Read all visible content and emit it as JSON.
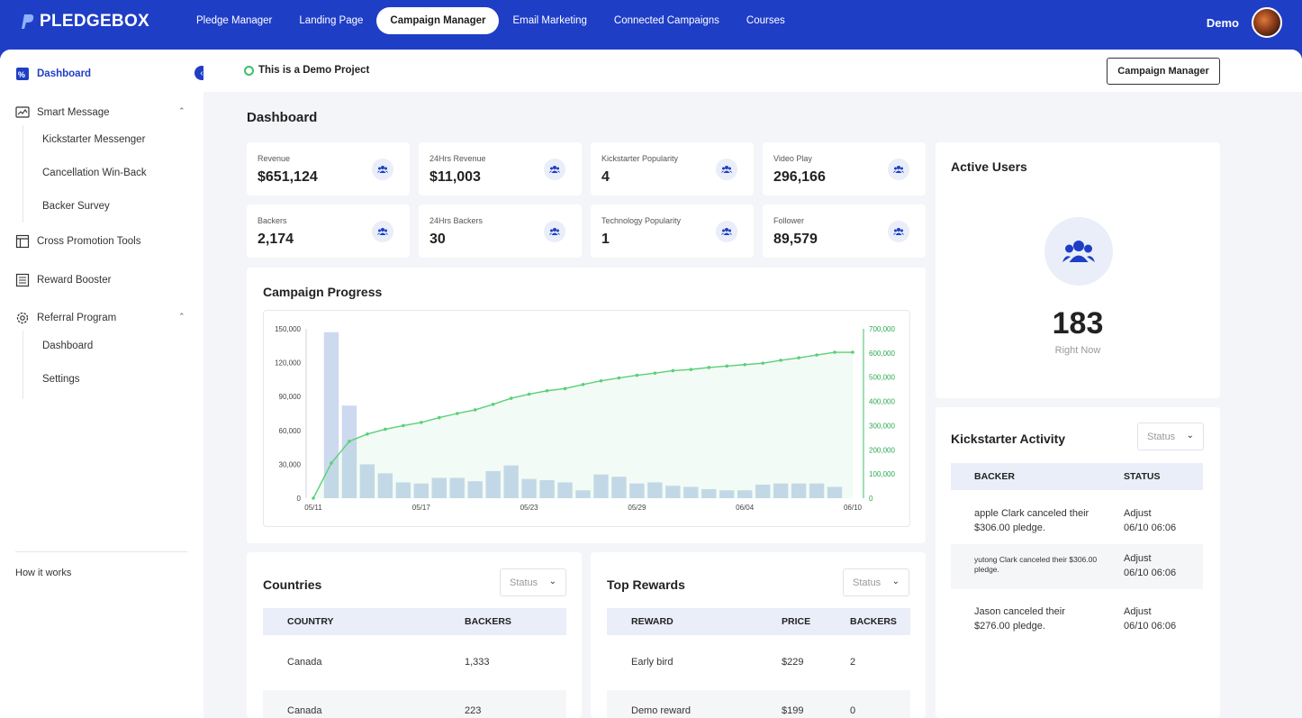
{
  "brand": {
    "name": "PLEDGEBOX"
  },
  "nav": {
    "items": [
      "Pledge Manager",
      "Landing Page",
      "Campaign Manager",
      "Email Marketing",
      "Connected Campaigns",
      "Courses"
    ],
    "active": "Campaign Manager"
  },
  "user": {
    "name": "Demo"
  },
  "sidebar": {
    "dashboard": "Dashboard",
    "smart_message": "Smart Message",
    "smart_sub": [
      "Kickstarter Messenger",
      "Cancellation Win-Back",
      "Backer Survey"
    ],
    "cross_promotion": "Cross Promotion Tools",
    "reward_booster": "Reward Booster",
    "referral": "Referral Program",
    "referral_sub": [
      "Dashboard",
      "Settings"
    ],
    "how_it_works": "How it  works"
  },
  "header": {
    "demo_text": "This is a Demo Project",
    "campaign_manager_button": "Campaign Manager"
  },
  "page_title": "Dashboard",
  "stats": [
    {
      "label": "Revenue",
      "value": "$651,124"
    },
    {
      "label": "24Hrs Revenue",
      "value": "$11,003"
    },
    {
      "label": "Kickstarter Popularity",
      "value": "4"
    },
    {
      "label": "Video Play",
      "value": "296,166"
    },
    {
      "label": "Backers",
      "value": "2,174"
    },
    {
      "label": "24Hrs Backers",
      "value": "30"
    },
    {
      "label": "Technology Popularity",
      "value": "1"
    },
    {
      "label": "Follower",
      "value": "89,579"
    }
  ],
  "campaign_progress": {
    "title": "Campaign Progress"
  },
  "chart_data": {
    "type": "bar",
    "title": "Campaign Progress",
    "x_tick_labels": [
      "05/11",
      "05/17",
      "05/23",
      "05/29",
      "06/04",
      "06/10"
    ],
    "y_left_ticks": [
      "0",
      "30,000",
      "60,000",
      "90,000",
      "120,000",
      "150,000"
    ],
    "y_right_ticks": [
      "0",
      "100,000",
      "200,000",
      "300,000",
      "400,000",
      "500,000",
      "600,000",
      "700,000"
    ],
    "ylim_left": [
      0,
      150000
    ],
    "ylim_right": [
      0,
      700000
    ],
    "series": [
      {
        "type": "bar",
        "axis": "left",
        "color": "#ccd9ef",
        "values": [
          0,
          147000,
          82000,
          30000,
          22000,
          14000,
          13000,
          18000,
          18000,
          15000,
          24000,
          29000,
          17000,
          16000,
          14000,
          7000,
          21000,
          19000,
          13000,
          14000,
          11000,
          10000,
          8000,
          7000,
          7000,
          12000,
          13000,
          13000,
          13000,
          10000,
          0
        ]
      },
      {
        "type": "line",
        "axis": "right",
        "color": "#5ccf7a",
        "values": [
          0,
          145000,
          235000,
          265000,
          285000,
          300000,
          313000,
          333000,
          350000,
          365000,
          388000,
          413000,
          430000,
          444000,
          453000,
          470000,
          485000,
          497000,
          508000,
          517000,
          527000,
          532000,
          540000,
          546000,
          552000,
          558000,
          570000,
          580000,
          592000,
          603000,
          603000
        ]
      }
    ]
  },
  "active_users": {
    "title": "Active Users",
    "count": "183",
    "subtitle": "Right Now"
  },
  "countries": {
    "title": "Countries",
    "status_placeholder": "Status",
    "headers": [
      "COUNTRY",
      "BACKERS"
    ],
    "rows": [
      {
        "country": "Canada",
        "backers": "1,333"
      },
      {
        "country": "Canada",
        "backers": "223"
      }
    ]
  },
  "top_rewards": {
    "title": "Top Rewards",
    "status_placeholder": "Status",
    "headers": [
      "REWARD",
      "PRICE",
      "BACKERS"
    ],
    "rows": [
      {
        "reward": "Early bird",
        "price": "$229",
        "backers": "2"
      },
      {
        "reward": "Demo reward",
        "price": "$199",
        "backers": "0"
      }
    ]
  },
  "kickstarter_activity": {
    "title": "Kickstarter Activity",
    "status_placeholder": "Status",
    "headers": [
      "BACKER",
      "STATUS"
    ],
    "rows": [
      {
        "backer": "apple Clark canceled their $306.00 pledge.",
        "status": "Adjust",
        "time": "06/10 06:06"
      },
      {
        "backer": "yutong Clark canceled their $306.00 pledge.",
        "status": "Adjust",
        "time": "06/10 06:06"
      },
      {
        "backer": "Jason canceled their $276.00 pledge.",
        "status": "Adjust",
        "time": "06/10 06:06"
      }
    ]
  },
  "colors": {
    "brand": "#1f3ec6",
    "bars": "#ccd9ef",
    "line": "#5ccf7a",
    "demo_dot": "#3cbf6a"
  }
}
